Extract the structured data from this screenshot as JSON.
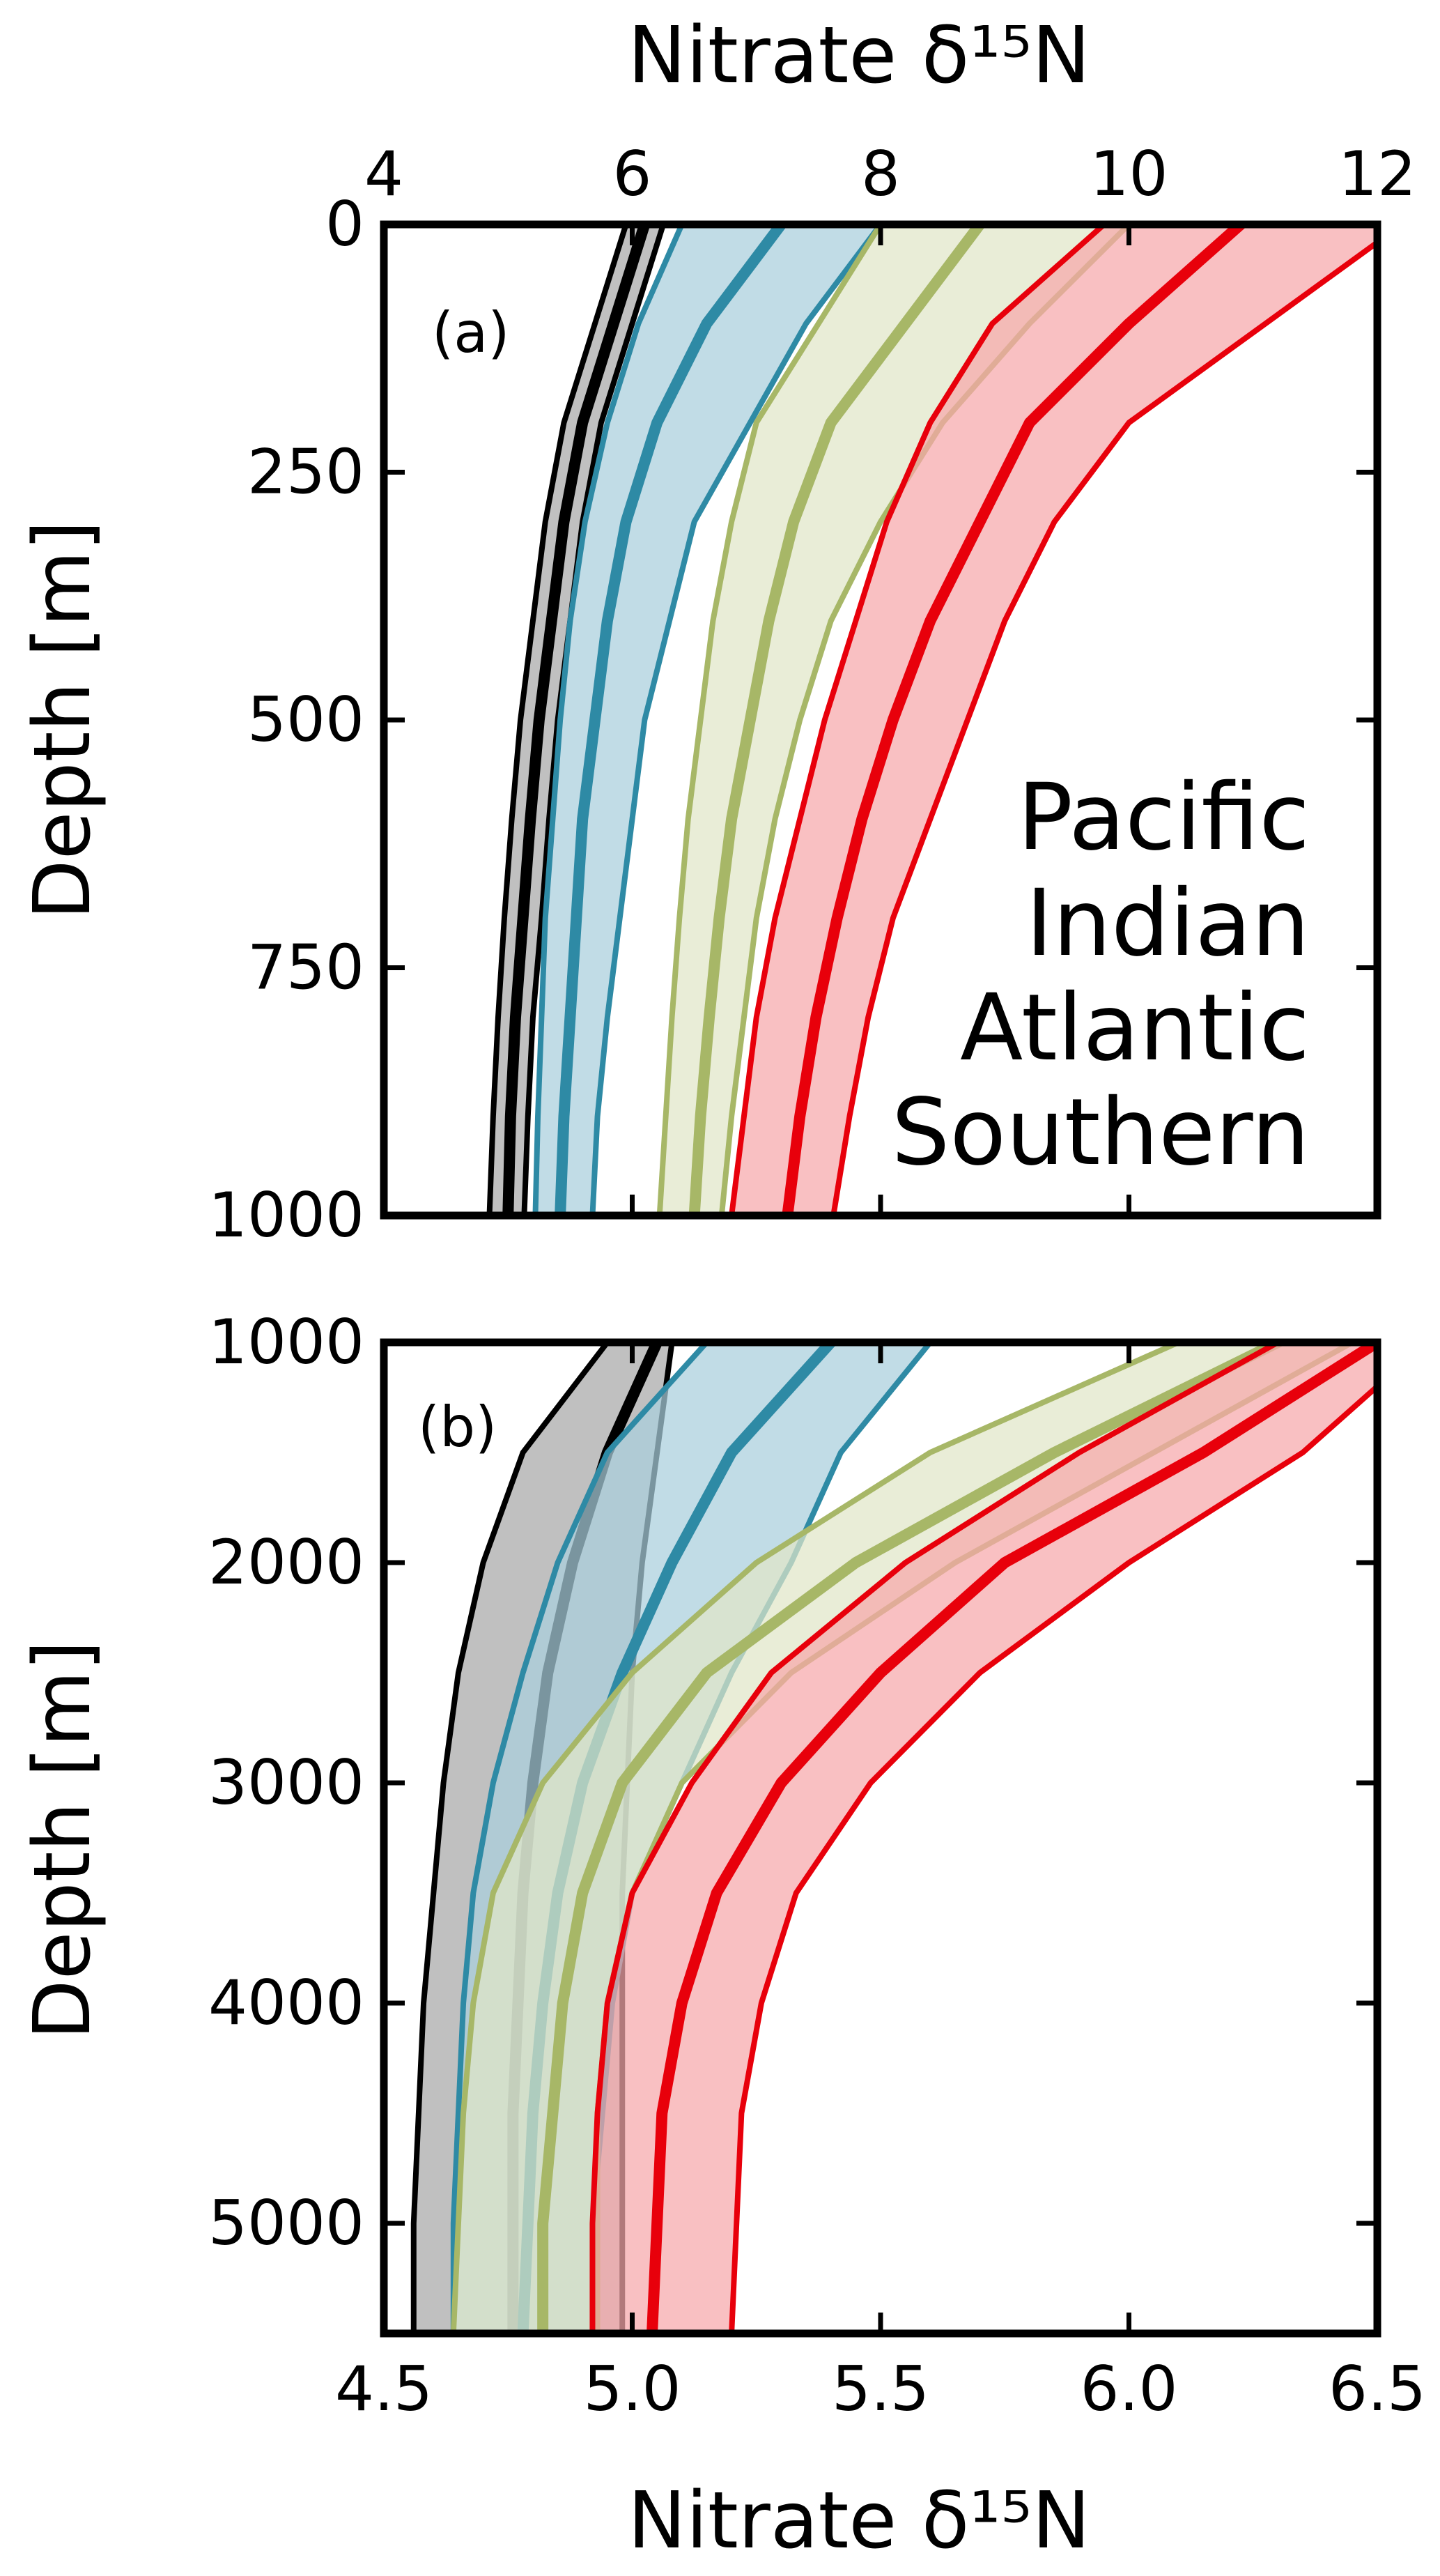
{
  "figure": {
    "top_axis_title": "Nitrate δ¹⁵N",
    "bottom_axis_title": "Nitrate δ¹⁵N",
    "y_axis_title_a": "Depth [m]",
    "y_axis_title_b": "Depth [m]"
  },
  "legend": [
    {
      "label": "Pacific",
      "color": "#e8000b"
    },
    {
      "label": "Indian",
      "color": "#a7b767"
    },
    {
      "label": "Atlantic",
      "color": "#2e8aa5"
    },
    {
      "label": "Southern",
      "color": "#000000"
    }
  ],
  "chart_data": [
    {
      "panel": "(a)",
      "type": "line",
      "x_axis_position": "top",
      "xlim": [
        4,
        12
      ],
      "ylim": [
        1000,
        0
      ],
      "xticks": [
        "4",
        "6",
        "8",
        "10",
        "12"
      ],
      "yticks": [
        "0",
        "250",
        "500",
        "750",
        "1000"
      ],
      "legend_placement": "bottom-right",
      "series": [
        {
          "name": "Southern",
          "color": "#000000",
          "fill": "#a8a8a8",
          "depth": [
            0,
            100,
            200,
            300,
            400,
            500,
            600,
            700,
            800,
            900,
            1000
          ],
          "mean": [
            6.1,
            5.85,
            5.6,
            5.45,
            5.35,
            5.25,
            5.18,
            5.12,
            5.06,
            5.02,
            5.0
          ],
          "lower": [
            5.95,
            5.7,
            5.45,
            5.3,
            5.2,
            5.1,
            5.03,
            4.97,
            4.92,
            4.88,
            4.85
          ],
          "upper": [
            6.25,
            6.0,
            5.75,
            5.6,
            5.5,
            5.4,
            5.33,
            5.27,
            5.2,
            5.16,
            5.13
          ]
        },
        {
          "name": "Atlantic",
          "color": "#2e8aa5",
          "fill": "#a9cfdc",
          "depth": [
            0,
            100,
            200,
            300,
            400,
            500,
            600,
            700,
            800,
            900,
            1000
          ],
          "mean": [
            7.2,
            6.6,
            6.2,
            5.95,
            5.8,
            5.7,
            5.6,
            5.55,
            5.5,
            5.45,
            5.42
          ],
          "lower": [
            6.4,
            6.05,
            5.8,
            5.62,
            5.5,
            5.42,
            5.36,
            5.3,
            5.27,
            5.24,
            5.22
          ],
          "upper": [
            8.0,
            7.4,
            6.95,
            6.5,
            6.3,
            6.1,
            6.0,
            5.9,
            5.8,
            5.72,
            5.68
          ]
        },
        {
          "name": "Indian",
          "color": "#a7b767",
          "fill": "#e0e6c8",
          "depth": [
            0,
            100,
            200,
            300,
            400,
            500,
            600,
            700,
            800,
            900,
            1000
          ],
          "mean": [
            8.8,
            8.2,
            7.6,
            7.3,
            7.1,
            6.95,
            6.8,
            6.7,
            6.62,
            6.55,
            6.5
          ],
          "lower": [
            8.0,
            7.5,
            7.0,
            6.8,
            6.65,
            6.55,
            6.45,
            6.38,
            6.32,
            6.27,
            6.22
          ],
          "upper": [
            10.0,
            9.2,
            8.5,
            8.0,
            7.6,
            7.35,
            7.15,
            7.0,
            6.9,
            6.8,
            6.72
          ]
        },
        {
          "name": "Pacific",
          "color": "#e8000b",
          "fill": "#f7a8ab",
          "depth": [
            0,
            100,
            200,
            300,
            400,
            500,
            600,
            700,
            800,
            900,
            1000
          ],
          "mean": [
            10.9,
            10.0,
            9.2,
            8.8,
            8.4,
            8.1,
            7.85,
            7.65,
            7.48,
            7.35,
            7.25
          ],
          "lower": [
            9.8,
            8.9,
            8.4,
            8.05,
            7.8,
            7.55,
            7.35,
            7.15,
            7.0,
            6.9,
            6.8
          ],
          "upper": [
            12.2,
            11.1,
            10.0,
            9.4,
            9.0,
            8.7,
            8.4,
            8.1,
            7.9,
            7.75,
            7.62
          ]
        }
      ]
    },
    {
      "panel": "(b)",
      "type": "line",
      "x_axis_position": "bottom",
      "xlim": [
        4.5,
        6.5
      ],
      "ylim": [
        5500,
        1000
      ],
      "xticks": [
        "4.5",
        "5.0",
        "5.5",
        "6.0",
        "6.5"
      ],
      "yticks": [
        "1000",
        "2000",
        "3000",
        "4000",
        "5000"
      ],
      "series": [
        {
          "name": "Southern",
          "color": "#000000",
          "fill": "#a8a8a8",
          "depth": [
            1000,
            1500,
            2000,
            2500,
            3000,
            3500,
            4000,
            4500,
            5000,
            5500
          ],
          "mean": [
            5.05,
            4.95,
            4.88,
            4.83,
            4.8,
            4.78,
            4.77,
            4.76,
            4.76,
            4.76
          ],
          "lower": [
            4.95,
            4.78,
            4.7,
            4.65,
            4.62,
            4.6,
            4.58,
            4.57,
            4.56,
            4.56
          ],
          "upper": [
            5.08,
            5.05,
            5.02,
            5.0,
            4.99,
            4.98,
            4.98,
            4.98,
            4.98,
            4.98
          ]
        },
        {
          "name": "Atlantic",
          "color": "#2e8aa5",
          "fill": "#a9cfdc",
          "depth": [
            1000,
            1500,
            2000,
            2500,
            3000,
            3500,
            4000,
            4500,
            5000,
            5500
          ],
          "mean": [
            5.4,
            5.2,
            5.08,
            4.98,
            4.9,
            4.85,
            4.82,
            4.8,
            4.79,
            4.78
          ],
          "lower": [
            5.15,
            4.95,
            4.85,
            4.78,
            4.72,
            4.68,
            4.66,
            4.65,
            4.64,
            4.64
          ],
          "upper": [
            5.6,
            5.42,
            5.32,
            5.2,
            5.1,
            5.0,
            4.96,
            4.94,
            4.92,
            4.92
          ]
        },
        {
          "name": "Indian",
          "color": "#a7b767",
          "fill": "#e0e6c8",
          "depth": [
            1000,
            1500,
            2000,
            2500,
            3000,
            3500,
            4000,
            4500,
            5000,
            5500
          ],
          "mean": [
            6.3,
            5.85,
            5.45,
            5.15,
            4.98,
            4.9,
            4.86,
            4.84,
            4.82,
            4.82
          ],
          "lower": [
            6.1,
            5.6,
            5.25,
            5.0,
            4.82,
            4.72,
            4.68,
            4.66,
            4.65,
            4.64
          ],
          "upper": [
            6.45,
            6.05,
            5.65,
            5.32,
            5.1,
            5.0,
            4.95,
            4.93,
            4.93,
            4.93
          ]
        },
        {
          "name": "Pacific",
          "color": "#e8000b",
          "fill": "#f7a8ab",
          "depth": [
            1000,
            1500,
            2000,
            2500,
            3000,
            3500,
            4000,
            4500,
            5000,
            5500
          ],
          "mean": [
            6.5,
            6.15,
            5.75,
            5.5,
            5.3,
            5.17,
            5.1,
            5.06,
            5.05,
            5.04
          ],
          "lower": [
            6.3,
            5.9,
            5.55,
            5.28,
            5.12,
            5.0,
            4.95,
            4.93,
            4.92,
            4.92
          ],
          "upper": [
            6.6,
            6.35,
            6.0,
            5.7,
            5.48,
            5.33,
            5.26,
            5.22,
            5.21,
            5.2
          ]
        }
      ]
    }
  ]
}
